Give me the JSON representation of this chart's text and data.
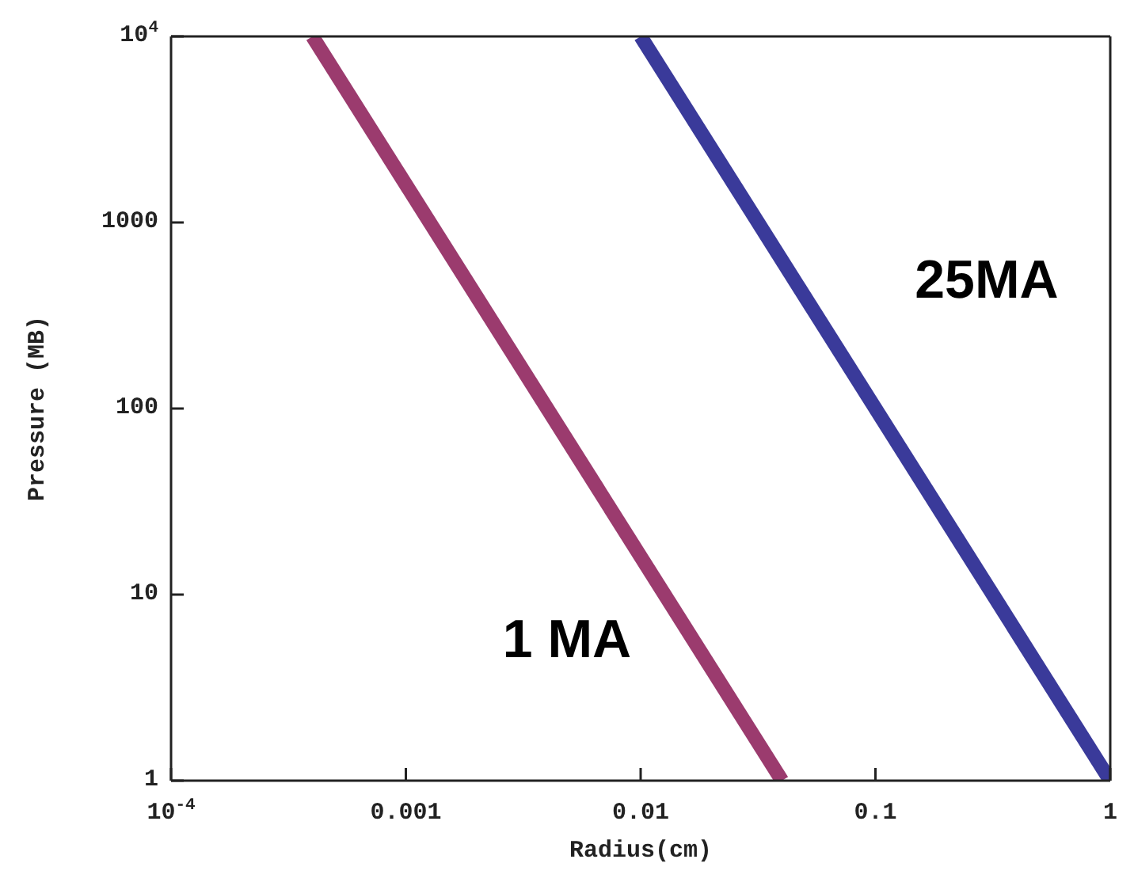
{
  "chart_data": {
    "type": "line",
    "xlabel": "Radius(cm)",
    "ylabel": "Pressure (MB)",
    "log": "xy",
    "xlim": [
      0.0001,
      1
    ],
    "ylim": [
      1,
      10000
    ],
    "xticks": [
      {
        "value": 0.0001,
        "label": "10$^{-4}$"
      },
      0.001,
      0.01,
      0.1,
      1
    ],
    "yticks": [
      1,
      10,
      100,
      1000,
      {
        "value": 10000,
        "label": "10$^{4}$"
      }
    ],
    "series": [
      {
        "color": "#9b3b6e",
        "x": [
          0.0004,
          0.04
        ],
        "values": [
          10000,
          1
        ]
      },
      {
        "color": "#3a3a9a",
        "x": [
          0.01,
          1
        ],
        "values": [
          10000,
          1
        ]
      }
    ],
    "annotations": [
      "1 MA",
      "25MA"
    ],
    "legend": false,
    "marker": "none",
    "line_style": "solid"
  }
}
